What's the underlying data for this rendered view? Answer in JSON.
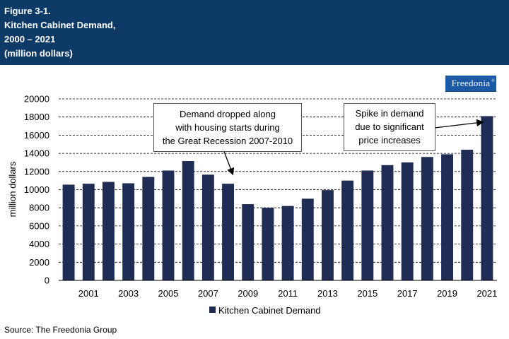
{
  "header": {
    "figure": "Figure 3-1.",
    "title": "Kitchen Cabinet Demand,",
    "years": "2000 – 2021",
    "units": "(million dollars)"
  },
  "logo": {
    "text": "Freedonia",
    "mark": "®"
  },
  "source": "Source: The Freedonia Group",
  "annotations": {
    "recession": [
      "Demand dropped along",
      "with housing starts during",
      "the Great Recession 2007-2010"
    ],
    "spike": [
      "Spike in demand",
      "due to significant",
      "price increases"
    ]
  },
  "colors": {
    "header": "#0e3a68",
    "bar": "#1f2d55",
    "logo": "#1d5aa6"
  },
  "chart_data": {
    "type": "bar",
    "title": "Kitchen Cabinet Demand, 2000 – 2021",
    "ylabel": "million dollars",
    "xlabel": "",
    "categories": [
      2000,
      2001,
      2002,
      2003,
      2004,
      2005,
      2006,
      2007,
      2008,
      2009,
      2010,
      2011,
      2012,
      2013,
      2014,
      2015,
      2016,
      2017,
      2018,
      2019,
      2020,
      2021
    ],
    "x_tick_labels": [
      "2001",
      "2003",
      "2005",
      "2007",
      "2009",
      "2011",
      "2013",
      "2015",
      "2017",
      "2019",
      "2021"
    ],
    "y_tick_labels": [
      "0",
      "2000",
      "4000",
      "6000",
      "8000",
      "10000",
      "12000",
      "14000",
      "16000",
      "18000",
      "20000"
    ],
    "series": [
      {
        "name": "Kitchen Cabinet Demand",
        "values": [
          10550,
          10650,
          10850,
          10700,
          11400,
          12100,
          13150,
          11650,
          10650,
          8400,
          8000,
          8200,
          9000,
          9950,
          11000,
          12100,
          12700,
          13000,
          13600,
          13900,
          14400,
          18100
        ]
      }
    ],
    "ylim": [
      0,
      20000
    ],
    "grid": "horizontal dashed",
    "legend": "bottom"
  }
}
